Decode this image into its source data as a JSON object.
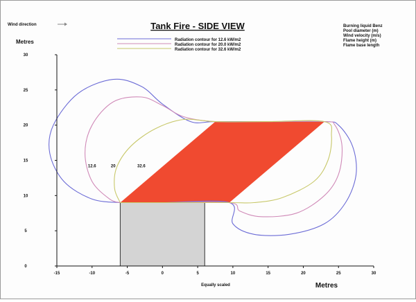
{
  "window": {
    "wind_direction_label": "Wind direction"
  },
  "legend": {
    "items": [
      {
        "label": "Radiation contour for 12.6 kW/m2",
        "color": "#6b6bd6"
      },
      {
        "label": "Radiation contour for 20.0 kW/m2",
        "color": "#d08ab8"
      },
      {
        "label": "Radiation contour for 32.6 kW/m2",
        "color": "#c8c86a"
      }
    ]
  },
  "info_panel": {
    "lines": [
      "Burning liquid Benz",
      "Pool diameter (m)",
      "Wind velocity (m/s)",
      "Flame height (m)",
      "Flame base length"
    ]
  },
  "colors": {
    "flame": "#f04a30",
    "tank": "#d4d4d4",
    "contour_outer": "#6b6bd6",
    "contour_middle": "#d08ab8",
    "contour_inner": "#c8c86a"
  },
  "chart_data": {
    "type": "area",
    "title": "Tank Fire - SIDE VIEW",
    "xlabel": "Metres",
    "ylabel": "Metres",
    "note": "Equally scaled",
    "xlim": [
      -15,
      30
    ],
    "ylim": [
      0,
      30
    ],
    "x_ticks": [
      -15,
      -10,
      -5,
      0,
      5,
      10,
      15,
      20,
      25,
      30
    ],
    "y_ticks": [
      0,
      5,
      10,
      15,
      20,
      25,
      30
    ],
    "grid": false,
    "tank": {
      "x0": -6,
      "x1": 6,
      "y0": 0,
      "y1": 9
    },
    "flame_polygon": [
      [
        -6,
        9
      ],
      [
        7.5,
        20.5
      ],
      [
        23,
        20.5
      ],
      [
        9.5,
        9
      ]
    ],
    "contours": [
      {
        "name": "12.6",
        "color": "#6b6bd6",
        "points": [
          [
            -6,
            9
          ],
          [
            -10,
            9.5
          ],
          [
            -14,
            12
          ],
          [
            -16,
            16
          ],
          [
            -15.5,
            20
          ],
          [
            -12,
            24.5
          ],
          [
            -7,
            26.5
          ],
          [
            -3,
            25.5
          ],
          [
            0,
            23
          ],
          [
            4,
            20.5
          ],
          [
            7.5,
            20.5
          ],
          [
            15,
            20.5
          ],
          [
            23,
            20.5
          ],
          [
            25,
            20
          ],
          [
            27,
            17
          ],
          [
            27.5,
            13
          ],
          [
            26,
            9
          ],
          [
            23,
            6
          ],
          [
            18,
            4.5
          ],
          [
            13,
            4.5
          ],
          [
            10,
            6
          ],
          [
            9.5,
            9
          ],
          [
            0,
            9
          ],
          [
            -6,
            9
          ]
        ]
      },
      {
        "name": "20",
        "color": "#d08ab8",
        "points": [
          [
            -6,
            9
          ],
          [
            -7.5,
            9.5
          ],
          [
            -10,
            12
          ],
          [
            -11,
            16
          ],
          [
            -10,
            20
          ],
          [
            -7,
            23.3
          ],
          [
            -3,
            24
          ],
          [
            0,
            22.8
          ],
          [
            3,
            21.2
          ],
          [
            7.5,
            20.5
          ],
          [
            15,
            20.5
          ],
          [
            23,
            20.5
          ],
          [
            24.5,
            20
          ],
          [
            25.5,
            17
          ],
          [
            25,
            13
          ],
          [
            23,
            10
          ],
          [
            19,
            7.5
          ],
          [
            14,
            7
          ],
          [
            11,
            7.8
          ],
          [
            9.5,
            9
          ],
          [
            0,
            9
          ],
          [
            -6,
            9
          ]
        ]
      },
      {
        "name": "32.6",
        "color": "#c8c86a",
        "points": [
          [
            -6,
            9
          ],
          [
            -6.8,
            11
          ],
          [
            -6.5,
            14
          ],
          [
            -4.5,
            17
          ],
          [
            -1,
            19.5
          ],
          [
            3,
            20.8
          ],
          [
            7.5,
            20.5
          ],
          [
            15,
            20.5
          ],
          [
            23,
            20.5
          ],
          [
            24,
            18.5
          ],
          [
            23.5,
            15
          ],
          [
            21.5,
            12
          ],
          [
            17,
            9.7
          ],
          [
            13,
            9
          ],
          [
            9.5,
            9
          ],
          [
            0,
            9
          ],
          [
            -6,
            9
          ]
        ]
      }
    ],
    "contour_labels": [
      {
        "text": "12.6",
        "x": -10,
        "y": 14
      },
      {
        "text": "20",
        "x": -7,
        "y": 14
      },
      {
        "text": "32.6",
        "x": -3,
        "y": 14
      }
    ]
  }
}
